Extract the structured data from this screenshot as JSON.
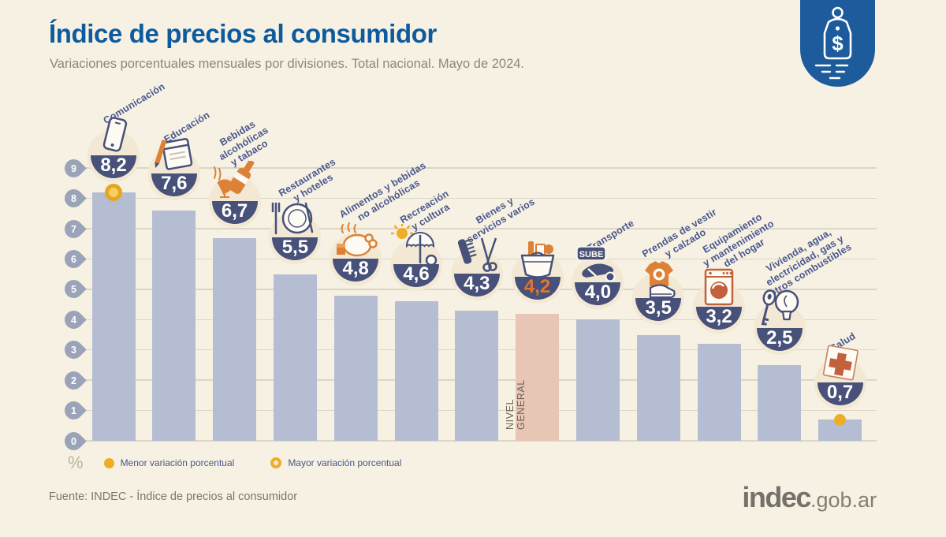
{
  "header": {
    "title": "Índice de precios al consumidor",
    "subtitle": "Variaciones porcentuales mensuales por divisiones. Total nacional. Mayo de 2024.",
    "brand_icon": "price-tag-icon",
    "brand_color": "#1d5b9c"
  },
  "chart_data": {
    "type": "bar",
    "title": "Índice de precios al consumidor",
    "subtitle": "Variaciones porcentuales mensuales por divisiones. Total nacional. Mayo de 2024.",
    "unit": "%",
    "ylim": [
      0,
      9
    ],
    "yticks": [
      0,
      1,
      2,
      3,
      4,
      5,
      6,
      7,
      8,
      9
    ],
    "grid": true,
    "legend_position": "bottom-left",
    "colors": {
      "bar": "#b5bdd2",
      "highlight_bar": "#e8c6b5",
      "badge": "#475179",
      "icon_circle": "#f2e8d4",
      "label": "#4a568e",
      "grid": "#dcd6c6",
      "pin": "#9aa3b8",
      "marker_yellow": "#eead26",
      "value": "#ffffff",
      "highlight_value": "#e0762e"
    },
    "items": [
      {
        "id": "comunicacion",
        "label": "Comunicación",
        "value": 8.2,
        "display": "8,2",
        "icon": "phone-icon",
        "marker": "ring"
      },
      {
        "id": "educacion",
        "label": "Educación",
        "value": 7.6,
        "display": "7,6",
        "icon": "notebook-pencil-icon",
        "marker": null
      },
      {
        "id": "bebidas-alcoholicas-y-tabaco",
        "label": "Bebidas\nalcohólicas\ny tabaco",
        "value": 6.7,
        "display": "6,7",
        "icon": "wine-bottle-icon",
        "marker": null
      },
      {
        "id": "restaurantes-y-hoteles",
        "label": "Restaurantes\ny hoteles",
        "value": 5.5,
        "display": "5,5",
        "icon": "plate-cutlery-icon",
        "marker": null
      },
      {
        "id": "alimentos-y-bebidas-no-alcoholicas",
        "label": "Alimentos y bebidas\nno alcohólicas",
        "value": 4.8,
        "display": "4,8",
        "icon": "roast-chicken-icon",
        "marker": null
      },
      {
        "id": "recreacion-y-cultura",
        "label": "Recreación\ny cultura",
        "value": 4.6,
        "display": "4,6",
        "icon": "sun-umbrella-icon",
        "marker": null
      },
      {
        "id": "bienes-y-servicios-varios",
        "label": "Bienes y\nservicios varios",
        "value": 4.3,
        "display": "4,3",
        "icon": "comb-scissors-icon",
        "marker": null
      },
      {
        "id": "nivel-general",
        "label": "NIVEL\nGENERAL",
        "value": 4.2,
        "display": "4,2",
        "icon": "shopping-basket-icon",
        "marker": null,
        "highlight": true,
        "vertical_label": true
      },
      {
        "id": "transporte",
        "label": "Transporte",
        "value": 4.0,
        "display": "4,0",
        "icon": "sube-card-icon",
        "icon_text": "SUBE",
        "marker": null
      },
      {
        "id": "prendas-de-vestir-y-calzado",
        "label": "Prendas de vestir\ny calzado",
        "value": 3.5,
        "display": "3,5",
        "icon": "tshirt-shoe-icon",
        "marker": null
      },
      {
        "id": "equipamiento-y-mantenimiento-del-hogar",
        "label": "Equipamiento\ny mantenimiento\ndel hogar",
        "value": 3.2,
        "display": "3,2",
        "icon": "washing-machine-icon",
        "marker": null
      },
      {
        "id": "vivienda-agua-electricidad-gas-y-otros-combustibles",
        "label": "Vivienda, agua,\nelectricidad, gas y\notros combustibles",
        "value": 2.5,
        "display": "2,5",
        "icon": "key-bulb-icon",
        "marker": null
      },
      {
        "id": "salud",
        "label": "Salud",
        "value": 0.7,
        "display": "0,7",
        "icon": "medical-cross-icon",
        "marker": "dot"
      }
    ]
  },
  "legend": {
    "percent_symbol": "%",
    "items": [
      {
        "marker": "filled-dot",
        "label": "Menor variación porcentual"
      },
      {
        "marker": "ring-dot",
        "label": "Mayor variación porcentual"
      }
    ]
  },
  "footer": {
    "source": "Fuente: INDEC - Índice de precios al consumidor",
    "logo_main": "indec",
    "logo_suffix": ".gob.ar"
  }
}
